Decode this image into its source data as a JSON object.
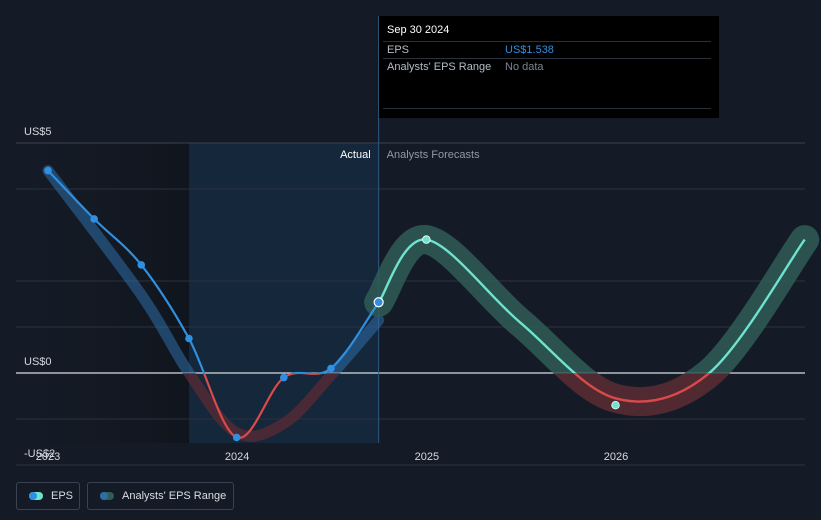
{
  "chart_data": {
    "type": "line",
    "title": "",
    "xlabel": "",
    "ylabel": "",
    "x_tick_labels": [
      "2023",
      "2024",
      "2025",
      "2026"
    ],
    "y_tick_labels": [
      "US$5",
      "US$0",
      "-US$2"
    ],
    "ylim": [
      -2,
      5
    ],
    "section_labels": {
      "actual": "Actual",
      "forecast": "Analysts Forecasts"
    },
    "series": [
      {
        "name": "EPS",
        "kind": "actual",
        "x": [
          "2023-01-01",
          "2023-03-31",
          "2023-06-30",
          "2023-09-30",
          "2023-12-31",
          "2024-03-31",
          "2024-06-30",
          "2024-09-30"
        ],
        "values": [
          4.4,
          3.35,
          2.35,
          0.75,
          -1.4,
          -0.1,
          0.1,
          1.538
        ]
      },
      {
        "name": "EPS",
        "kind": "forecast",
        "x": [
          "2024-09-30",
          "2024-12-31",
          "2025-12-31",
          "2026-12-31"
        ],
        "values": [
          1.538,
          2.9,
          -0.7,
          2.9
        ]
      }
    ],
    "range_band": {
      "name": "Analysts' EPS Range",
      "actual_x": [
        "2023-01-01",
        "2023-06-30",
        "2023-09-30",
        "2023-12-31",
        "2024-03-31",
        "2024-06-30",
        "2024-09-30"
      ],
      "actual_values": [
        4.4,
        1.7,
        0.0,
        -1.3,
        -1.1,
        -0.05,
        1.15
      ],
      "forecast_x": [
        "2024-09-30",
        "2024-12-31",
        "2025-06-30",
        "2025-12-31",
        "2026-06-30",
        "2026-12-31"
      ],
      "forecast_values": [
        1.538,
        2.9,
        1.1,
        -0.55,
        0.0,
        2.9
      ],
      "forecast_spread": 0.25
    },
    "highlight": {
      "x": "2024-09-30",
      "value": 1.538
    },
    "colors": {
      "positive": "#2f8fe0",
      "negative": "#d94a4a",
      "forecast": "#6ee3cf",
      "band_actual": "#2d6ea8",
      "band_forecast": "#2f5c57",
      "band_negative": "#5a2b34"
    }
  },
  "tooltip": {
    "date": "Sep 30 2024",
    "rows": [
      {
        "label": "EPS",
        "value": "US$1.538",
        "value_color": "#2f8fe0"
      },
      {
        "label": "Analysts' EPS Range",
        "value": "No data",
        "value_color": "#7b8492"
      }
    ]
  },
  "legend": {
    "items": [
      {
        "label": "EPS",
        "color": "#2f8fe0",
        "accent": "#6ee3cf"
      },
      {
        "label": "Analysts' EPS Range",
        "color": "#2d6ea8",
        "accent": "#2f5c57"
      }
    ]
  }
}
